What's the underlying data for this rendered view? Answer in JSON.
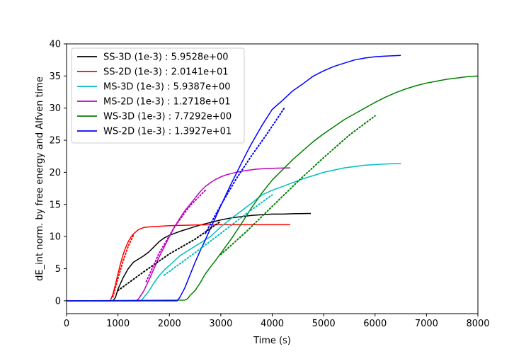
{
  "chart_data": {
    "type": "line",
    "xlabel": "Time (s)",
    "ylabel": "dE_int norm. by free energy and Alfven time",
    "xlim": [
      0,
      8000
    ],
    "ylim": [
      -2,
      40
    ],
    "xticks": [
      0,
      1000,
      2000,
      3000,
      4000,
      5000,
      6000,
      7000,
      8000
    ],
    "yticks": [
      0,
      5,
      10,
      15,
      20,
      25,
      30,
      35,
      40
    ],
    "grid": false,
    "legend_position": "top-left",
    "series": [
      {
        "name": "SS-3D (1e-3) : 5.9528e+00",
        "color": "#000000",
        "style": "solid",
        "x": [
          0,
          900,
          950,
          1000,
          1100,
          1200,
          1300,
          1400,
          1500,
          1600,
          1700,
          1800,
          1900,
          2000,
          2200,
          2400,
          2600,
          2800,
          3000,
          3200,
          3400,
          3600,
          3800,
          4000,
          4200,
          4400,
          4750
        ],
        "y": [
          0,
          0,
          0.5,
          1.8,
          3.6,
          5.0,
          6.0,
          6.5,
          7.0,
          7.6,
          8.4,
          9.2,
          9.8,
          10.2,
          10.8,
          11.3,
          11.8,
          12.2,
          12.6,
          12.9,
          13.1,
          13.3,
          13.4,
          13.5,
          13.5,
          13.55,
          13.6
        ]
      },
      {
        "name": "SS-2D (1e-3) : 2.0141e+01",
        "color": "#ff0000",
        "style": "solid",
        "x": [
          0,
          850,
          900,
          950,
          1000,
          1050,
          1100,
          1150,
          1200,
          1250,
          1300,
          1400,
          1500,
          1600,
          1800,
          2000,
          2500,
          3000,
          3500,
          4000,
          4350
        ],
        "y": [
          0,
          0,
          1.0,
          2.5,
          4.2,
          5.8,
          7.2,
          8.3,
          9.2,
          9.9,
          10.4,
          11.1,
          11.4,
          11.5,
          11.6,
          11.7,
          11.8,
          11.85,
          11.85,
          11.85,
          11.85
        ]
      },
      {
        "name": "MS-3D (1e-3) : 5.9387e+00",
        "color": "#00bfbf",
        "style": "solid",
        "x": [
          0,
          1450,
          1500,
          1600,
          1700,
          1800,
          1900,
          2000,
          2200,
          2400,
          2600,
          2800,
          3000,
          3200,
          3400,
          3600,
          3800,
          4000,
          4200,
          4400,
          4600,
          4800,
          5000,
          5400,
          5800,
          6200,
          6500
        ],
        "y": [
          0,
          0,
          0.5,
          1.5,
          2.8,
          3.9,
          4.8,
          5.5,
          7.0,
          8.0,
          9.0,
          10.0,
          11.5,
          12.8,
          14.0,
          15.2,
          16.5,
          17.2,
          17.8,
          18.4,
          19.0,
          19.5,
          20.0,
          20.7,
          21.1,
          21.3,
          21.4
        ]
      },
      {
        "name": "MS-2D (1e-3) : 1.2718e+01",
        "color": "#bf00bf",
        "style": "solid",
        "x": [
          0,
          1350,
          1400,
          1500,
          1600,
          1700,
          1800,
          1900,
          2000,
          2100,
          2200,
          2300,
          2400,
          2500,
          2600,
          2700,
          2800,
          2900,
          3000,
          3100,
          3200,
          3300,
          3500,
          3700,
          3900,
          4100,
          4350
        ],
        "y": [
          0,
          0,
          0.3,
          1.5,
          3.2,
          5.0,
          6.8,
          8.4,
          10.0,
          11.5,
          12.8,
          14.0,
          15.0,
          16.0,
          17.0,
          17.8,
          18.4,
          18.9,
          19.3,
          19.6,
          19.8,
          20.0,
          20.3,
          20.5,
          20.6,
          20.65,
          20.7
        ]
      },
      {
        "name": "WS-3D (1e-3) : 7.7292e+00",
        "color": "#008000",
        "style": "solid",
        "x": [
          0,
          2300,
          2350,
          2400,
          2500,
          2600,
          2700,
          2800,
          2900,
          3000,
          3200,
          3400,
          3600,
          3800,
          4000,
          4200,
          4400,
          4600,
          4800,
          5000,
          5200,
          5400,
          5600,
          5800,
          6000,
          6200,
          6400,
          6600,
          6800,
          7000,
          7200,
          7400,
          7600,
          7800,
          8000
        ],
        "y": [
          0,
          0.1,
          0.3,
          0.8,
          1.6,
          2.8,
          4.2,
          5.3,
          6.3,
          7.4,
          9.6,
          12.0,
          14.5,
          16.8,
          18.8,
          20.4,
          22.0,
          23.4,
          24.8,
          26.0,
          27.1,
          28.2,
          29.1,
          30.0,
          30.9,
          31.7,
          32.4,
          33.0,
          33.5,
          33.9,
          34.2,
          34.5,
          34.7,
          34.9,
          35.0
        ]
      },
      {
        "name": "WS-2D (1e-3) : 1.3927e+01",
        "color": "#0000ff",
        "style": "solid",
        "x": [
          0,
          2150,
          2200,
          2300,
          2400,
          2500,
          2600,
          2700,
          2800,
          2900,
          3000,
          3100,
          3200,
          3300,
          3400,
          3500,
          3600,
          3800,
          4000,
          4200,
          4400,
          4600,
          4800,
          5000,
          5200,
          5400,
          5600,
          5800,
          6000,
          6200,
          6500
        ],
        "y": [
          0,
          0,
          0.5,
          2.0,
          4.0,
          6.0,
          7.8,
          9.5,
          11.3,
          13.0,
          14.8,
          16.5,
          18.2,
          19.8,
          21.4,
          23.0,
          24.5,
          27.3,
          29.8,
          31.2,
          32.7,
          33.8,
          35.0,
          35.8,
          36.5,
          37.0,
          37.5,
          37.8,
          38.0,
          38.1,
          38.2
        ]
      },
      {
        "name": "",
        "color": "#000000",
        "style": "dotted",
        "x": [
          1000,
          1500,
          2000,
          2500,
          3000
        ],
        "y": [
          1.6,
          4.5,
          7.3,
          9.6,
          12.4
        ]
      },
      {
        "name": "",
        "color": "#ff0000",
        "style": "dotted",
        "x": [
          900,
          1000,
          1100,
          1200,
          1300
        ],
        "y": [
          0.6,
          3.5,
          6.2,
          8.5,
          10.2
        ]
      },
      {
        "name": "",
        "color": "#00bfbf",
        "style": "dotted",
        "x": [
          1900,
          2500,
          3000,
          3500,
          4000
        ],
        "y": [
          4.0,
          7.5,
          10.5,
          13.6,
          16.5
        ]
      },
      {
        "name": "",
        "color": "#bf00bf",
        "style": "dotted",
        "x": [
          1550,
          1800,
          2100,
          2400,
          2700
        ],
        "y": [
          3.0,
          7.4,
          11.5,
          14.8,
          17.2
        ]
      },
      {
        "name": "",
        "color": "#008000",
        "style": "dotted",
        "x": [
          3000,
          3500,
          4000,
          4500,
          5000,
          5500,
          6000
        ],
        "y": [
          7.2,
          10.8,
          14.7,
          18.6,
          22.3,
          25.8,
          28.8
        ]
      },
      {
        "name": "",
        "color": "#0000ff",
        "style": "dotted",
        "x": [
          2700,
          3000,
          3300,
          3600,
          3900,
          4250
        ],
        "y": [
          10.5,
          14.9,
          19.0,
          22.6,
          26.0,
          30.2
        ]
      }
    ]
  }
}
